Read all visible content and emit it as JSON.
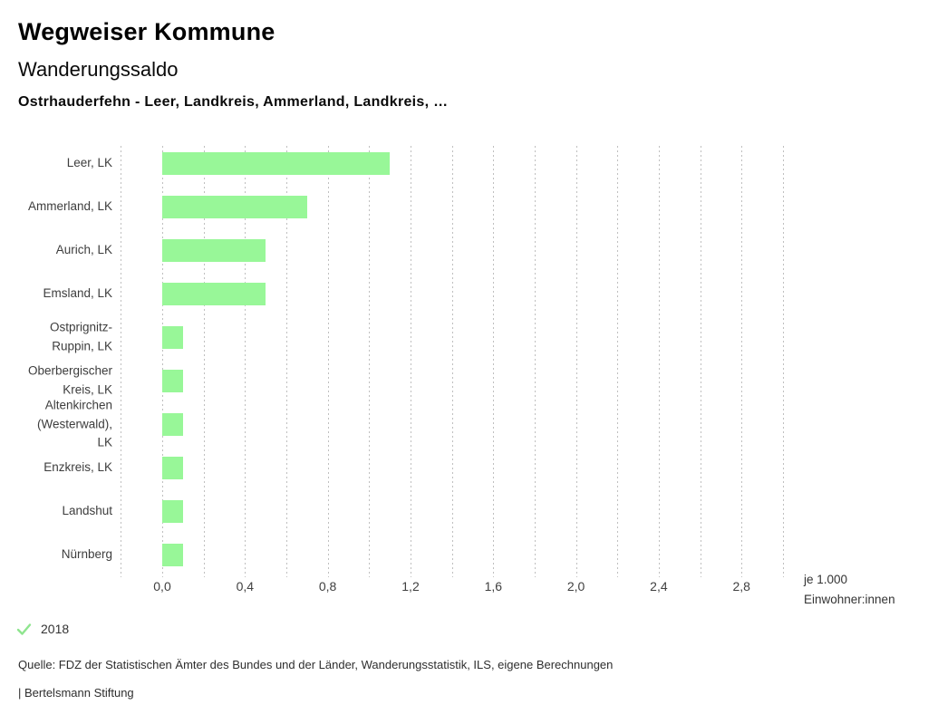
{
  "header": {
    "title": "Wegweiser Kommune",
    "subtitle": "Wanderungssaldo",
    "selection": "Ostrhauderfehn - Leer, Landkreis, Ammerland, Landkreis, …"
  },
  "chart_data": {
    "type": "bar",
    "orientation": "horizontal",
    "title": "Wanderungssaldo",
    "categories": [
      "Leer, LK",
      "Ammerland, LK",
      "Aurich, LK",
      "Emsland, LK",
      "Ostprignitz-Ruppin, LK",
      "Oberbergischer Kreis, LK",
      "Altenkirchen (Westerwald), LK",
      "Enzkreis, LK",
      "Landshut",
      "Nürnberg"
    ],
    "category_display_lines": [
      [
        "Leer, LK"
      ],
      [
        "Ammerland, LK"
      ],
      [
        "Aurich, LK"
      ],
      [
        "Emsland, LK"
      ],
      [
        "Ostprignitz-",
        "Ruppin, LK"
      ],
      [
        "Oberbergischer",
        "Kreis, LK"
      ],
      [
        "Altenkirchen",
        "(Westerwald),",
        "LK"
      ],
      [
        "Enzkreis, LK"
      ],
      [
        "Landshut"
      ],
      [
        "Nürnberg"
      ]
    ],
    "series": [
      {
        "name": "2018",
        "values": [
          1.1,
          0.7,
          0.5,
          0.5,
          0.1,
          0.1,
          0.1,
          0.1,
          0.1,
          0.1
        ]
      }
    ],
    "xlabel": "je 1.000 Einwohner:innen",
    "unit_label_lines": [
      "je 1.000",
      "Einwohner:innen"
    ],
    "xlim": [
      -0.2,
      3.0
    ],
    "grid_step": 0.2,
    "x_tick_labels": [
      "0,0",
      "0,4",
      "0,8",
      "1,2",
      "1,6",
      "2,0",
      "2,4",
      "2,8"
    ],
    "x_tick_values": [
      0.0,
      0.4,
      0.8,
      1.2,
      1.6,
      2.0,
      2.4,
      2.8
    ],
    "grid": true,
    "legend_position": "bottom-left",
    "bar_color": "#98F798"
  },
  "legend": {
    "year": "2018",
    "check_icon": "checkmark-icon"
  },
  "footer": {
    "source": "Quelle: FDZ der Statistischen Ämter des Bundes und der Länder, Wanderungsstatistik, ILS, eigene Berechnungen",
    "attribution": "| Bertelsmann Stiftung"
  },
  "colors": {
    "bar": "#98F798",
    "check": "#8FE58F",
    "grid": "#bfbfbf",
    "title_text": "#000000",
    "label_text": "#3d3d3d"
  }
}
